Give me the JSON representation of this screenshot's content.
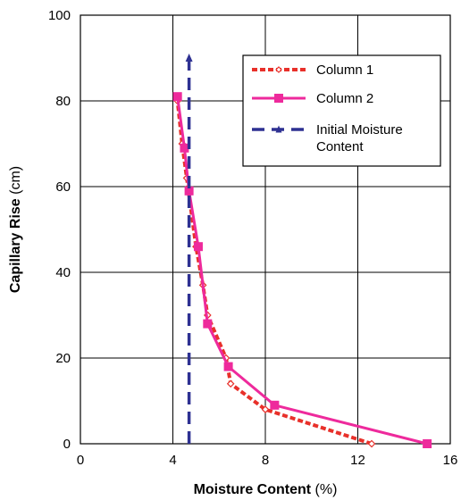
{
  "chart_data": {
    "type": "line",
    "title": "",
    "xlabel": {
      "bold": "Moisture Content",
      "unit": " (%)"
    },
    "ylabel": {
      "bold": "Capillary Rise",
      "unit": " (cm)"
    },
    "xlim": [
      0,
      16
    ],
    "ylim": [
      0,
      100
    ],
    "xticks": [
      "0",
      "4",
      "8",
      "12",
      "16"
    ],
    "yticks": [
      "0",
      "20",
      "40",
      "60",
      "80",
      "100"
    ],
    "grid": true,
    "legend_position": "top-right",
    "series": [
      {
        "name": "Column 1",
        "color": "#e8302a",
        "style": "dotted",
        "marker": "diamond-open",
        "points": [
          [
            12.6,
            0
          ],
          [
            8.0,
            8
          ],
          [
            6.5,
            14
          ],
          [
            6.3,
            20
          ],
          [
            5.5,
            30
          ],
          [
            5.3,
            37
          ],
          [
            5.0,
            46
          ],
          [
            4.6,
            62
          ],
          [
            4.4,
            70
          ],
          [
            4.2,
            80
          ]
        ]
      },
      {
        "name": "Column 2",
        "color": "#ee2a9c",
        "style": "solid",
        "marker": "square",
        "points": [
          [
            15.0,
            0
          ],
          [
            8.4,
            9
          ],
          [
            6.4,
            18
          ],
          [
            5.5,
            28
          ],
          [
            5.1,
            46
          ],
          [
            4.7,
            59
          ],
          [
            4.5,
            69
          ],
          [
            4.2,
            81
          ]
        ]
      },
      {
        "name": "Initial Moisture Content",
        "legend_lines": [
          "Initial Moisture",
          "Content"
        ],
        "color": "#2e3192",
        "style": "dashed",
        "marker": "triangle",
        "points": [
          [
            4.7,
            0
          ],
          [
            4.7,
            90
          ]
        ]
      }
    ]
  }
}
